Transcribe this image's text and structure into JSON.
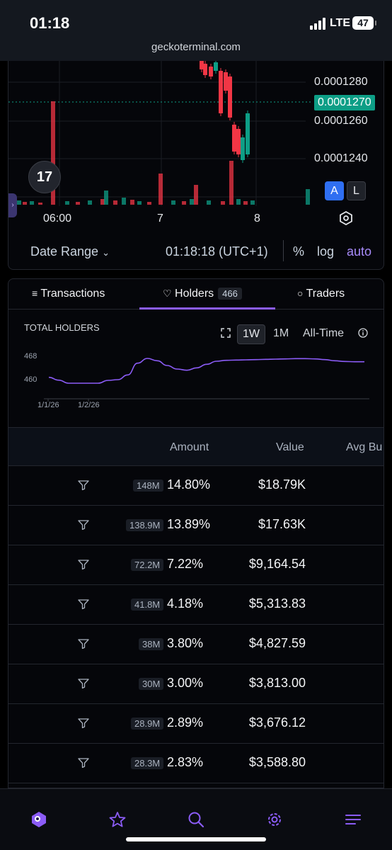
{
  "status": {
    "time": "01:18",
    "network": "LTE",
    "battery": "47"
  },
  "browser": {
    "url": "geckoterminal.com"
  },
  "price_chart": {
    "price_labels": [
      "0.0001280",
      "0.0001260",
      "0.0001240"
    ],
    "current_price": "0.0001270",
    "current_price_color": "#0d9e86",
    "tv_logo": "17",
    "scale_buttons": {
      "auto": "A",
      "log": "L"
    },
    "x_ticks": [
      "06:00",
      "7",
      "8"
    ],
    "toolbar": {
      "date_range": "Date Range",
      "time": "01:18:18 (UTC+1)",
      "percent": "%",
      "log": "log",
      "auto": "auto"
    },
    "up_color": "#0d9e86",
    "down_color": "#f23645"
  },
  "tabs": [
    {
      "label": "Transactions",
      "icon": "list-icon"
    },
    {
      "label": "Holders",
      "icon": "diamond-icon",
      "badge": "466",
      "active": true
    },
    {
      "label": "Traders",
      "icon": "medal-icon"
    }
  ],
  "holders_chart": {
    "title": "TOTAL HOLDERS",
    "ranges": [
      "1W",
      "1M",
      "All-Time"
    ],
    "selected_range": "1W",
    "y_ticks": [
      "468",
      "460"
    ],
    "x_ticks": [
      "1/1/26",
      "1/2/26"
    ],
    "line_color": "#8b5cf6",
    "chart_data": {
      "type": "line",
      "title": "TOTAL HOLDERS",
      "xlabel": "",
      "ylabel": "",
      "x_ticks": [
        "1/1/26",
        "1/2/26"
      ],
      "y_ticks": [
        460,
        468
      ],
      "series": [
        {
          "values": [
            461,
            459.8,
            458.5,
            458.5,
            458.5,
            458.5,
            459.7,
            460,
            462,
            467,
            469,
            468,
            466,
            464.5,
            464,
            465,
            466.5,
            467.8,
            468.2,
            468.3,
            468.4,
            468.5,
            468.6,
            468.7,
            468.8,
            468.9,
            468.9,
            468.8,
            468.5,
            468.0,
            467.7,
            467.6,
            467.6
          ]
        }
      ]
    }
  },
  "table": {
    "headers": [
      "Amount",
      "Value",
      "Avg Bu"
    ],
    "rows": [
      {
        "amount": "148M",
        "percent": "14.80%",
        "value": "$18.79K"
      },
      {
        "amount": "138.9M",
        "percent": "13.89%",
        "value": "$17.63K"
      },
      {
        "amount": "72.2M",
        "percent": "7.22%",
        "value": "$9,164.54"
      },
      {
        "amount": "41.8M",
        "percent": "4.18%",
        "value": "$5,313.83"
      },
      {
        "amount": "38M",
        "percent": "3.80%",
        "value": "$4,827.59"
      },
      {
        "amount": "30M",
        "percent": "3.00%",
        "value": "$3,813.00"
      },
      {
        "amount": "28.9M",
        "percent": "2.89%",
        "value": "$3,676.12"
      },
      {
        "amount": "28.3M",
        "percent": "2.83%",
        "value": "$3,588.80"
      }
    ]
  },
  "bottom_nav": [
    "home-icon",
    "star-icon",
    "search-icon",
    "settings-icon",
    "menu-icon"
  ]
}
